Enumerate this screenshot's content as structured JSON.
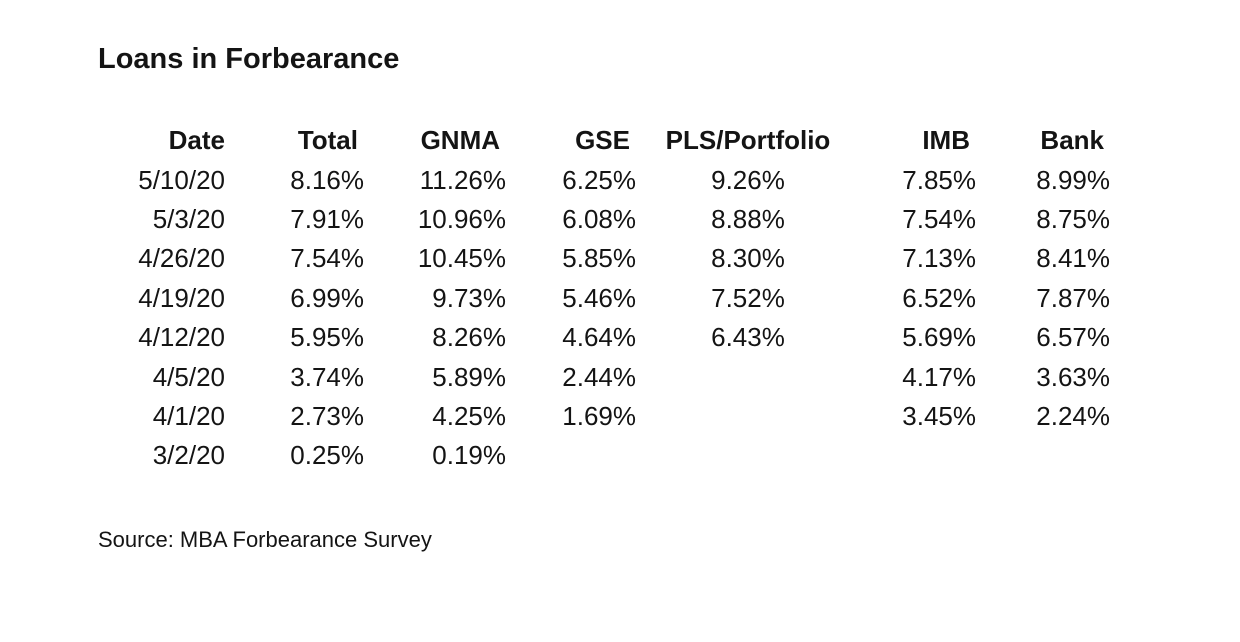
{
  "title": "Loans in Forbearance",
  "source_note": "Source: MBA Forbearance Survey",
  "colors": {
    "background": "#ffffff",
    "text": "#141414"
  },
  "chart_data": {
    "type": "table",
    "title": "Loans in Forbearance",
    "columns": [
      "Date",
      "Total",
      "GNMA",
      "GSE",
      "PLS/Portfolio",
      "IMB",
      "Bank"
    ],
    "rows": [
      [
        "5/10/20",
        "8.16%",
        "11.26%",
        "6.25%",
        "9.26%",
        "7.85%",
        "8.99%"
      ],
      [
        "5/3/20",
        "7.91%",
        "10.96%",
        "6.08%",
        "8.88%",
        "7.54%",
        "8.75%"
      ],
      [
        "4/26/20",
        "7.54%",
        "10.45%",
        "5.85%",
        "8.30%",
        "7.13%",
        "8.41%"
      ],
      [
        "4/19/20",
        "6.99%",
        "9.73%",
        "5.46%",
        "7.52%",
        "6.52%",
        "7.87%"
      ],
      [
        "4/12/20",
        "5.95%",
        "8.26%",
        "4.64%",
        "6.43%",
        "5.69%",
        "6.57%"
      ],
      [
        "4/5/20",
        "3.74%",
        "5.89%",
        "2.44%",
        "",
        "4.17%",
        "3.63%"
      ],
      [
        "4/1/20",
        "2.73%",
        "4.25%",
        "1.69%",
        "",
        "3.45%",
        "2.24%"
      ],
      [
        "3/2/20",
        "0.25%",
        "0.19%",
        "",
        "",
        "",
        ""
      ]
    ],
    "source": "Source: MBA Forbearance Survey",
    "layout": {
      "grid": false,
      "header_style": "bold",
      "value_alignment": "right",
      "pls_portfolio_alignment": "center"
    }
  }
}
